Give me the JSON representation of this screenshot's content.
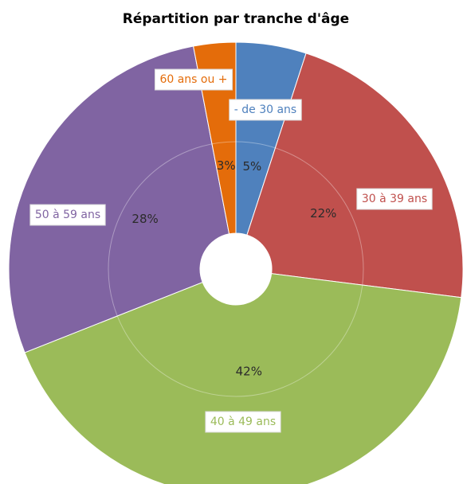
{
  "chart_data": {
    "type": "donut",
    "title": "Répartition par tranche d'âge",
    "categories": [
      "- de 30 ans",
      "30 à 39 ans",
      "40 à 49 ans",
      "50 à 59 ans",
      "60 ans ou +"
    ],
    "values": [
      5,
      22,
      42,
      28,
      3
    ],
    "value_labels": [
      "5%",
      "22%",
      "42%",
      "28%",
      "3%"
    ],
    "colors": [
      "#4f81bd",
      "#c0504d",
      "#9bbb59",
      "#8064a2",
      "#e46c0a"
    ]
  }
}
